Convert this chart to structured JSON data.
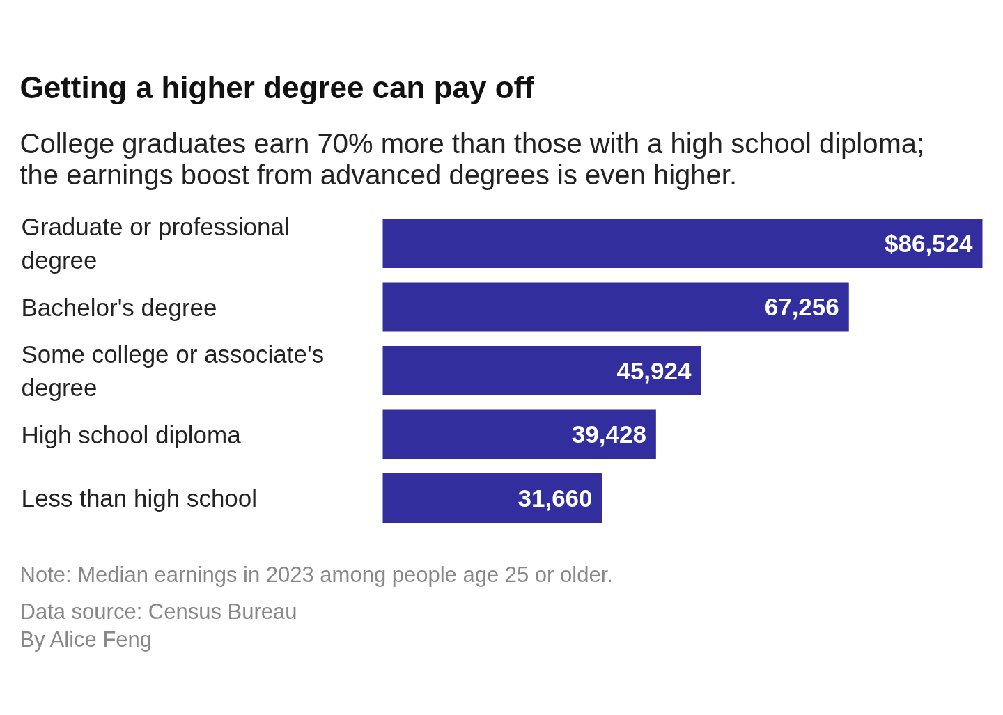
{
  "chart_data": {
    "type": "bar",
    "orientation": "horizontal",
    "title": "Getting a higher degree can pay off",
    "subtitle": "College graduates earn 70% more than those with a high school diploma; the earnings boost from advanced degrees is even higher.",
    "categories": [
      "Graduate or professional degree",
      "Bachelor's degree",
      "Some college or associate's degree",
      "High school diploma",
      "Less than high school"
    ],
    "values": [
      86524,
      67256,
      45924,
      39428,
      31660
    ],
    "value_labels": [
      "$86,524",
      "67,256",
      "45,924",
      "39,428",
      "31,660"
    ],
    "color": "#332e9e",
    "annotations": [
      "Note: Median earnings in 2023 among people age 25 or older.",
      "Data source: Census Bureau",
      "By Alice Feng"
    ]
  }
}
